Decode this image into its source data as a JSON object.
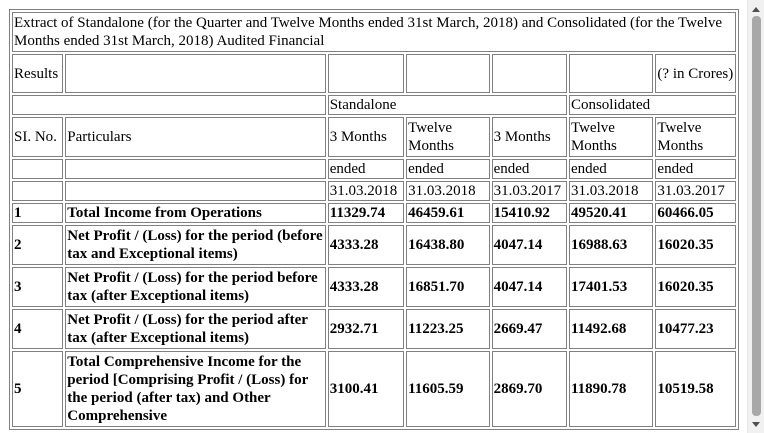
{
  "caption": "Extract of Standalone (for the Quarter and Twelve Months ended 31st March, 2018) and Consolidated (for the Twelve Months ended 31st March, 2018) Audited Financial",
  "results_label": "Results",
  "currency_note": "(? in Crores)",
  "group_standalone": "Standalone",
  "group_consolidated": "Consolidated",
  "col_sl": "SI. No.",
  "col_particulars": "Particulars",
  "period_labels": [
    "3 Months",
    "Twelve Months",
    "3 Months",
    "Twelve Months",
    "Twelve Months"
  ],
  "ended_labels": [
    "ended",
    "ended",
    "ended",
    "ended",
    "ended"
  ],
  "dates": [
    "31.03.2018",
    "31.03.2018",
    "31.03.2017",
    "31.03.2018",
    "31.03.2017"
  ],
  "rows": [
    {
      "sl": "1",
      "particular": "Total Income from Operations",
      "values": [
        "11329.74",
        "46459.61",
        "15410.92",
        "49520.41",
        "60466.05"
      ]
    },
    {
      "sl": "2",
      "particular": "Net Profit / (Loss) for the period (before tax and Exceptional items)",
      "values": [
        "4333.28",
        "16438.80",
        "4047.14",
        "16988.63",
        "16020.35"
      ]
    },
    {
      "sl": "3",
      "particular": "Net Profit / (Loss) for the period before tax (after Exceptional items)",
      "values": [
        "4333.28",
        "16851.70",
        "4047.14",
        "17401.53",
        "16020.35"
      ]
    },
    {
      "sl": "4",
      "particular": "Net Profit / (Loss) for the period after tax (after Exceptional items)",
      "values": [
        "2932.71",
        "11223.25",
        "2669.47",
        "11492.68",
        "10477.23"
      ]
    },
    {
      "sl": "5",
      "particular": "Total Comprehensive Income for the period [Comprising Profit / (Loss) for the period (after tax) and Other Comprehensive",
      "values": [
        "3100.41",
        "11605.59",
        "2869.70",
        "11890.78",
        "10519.58"
      ]
    }
  ]
}
